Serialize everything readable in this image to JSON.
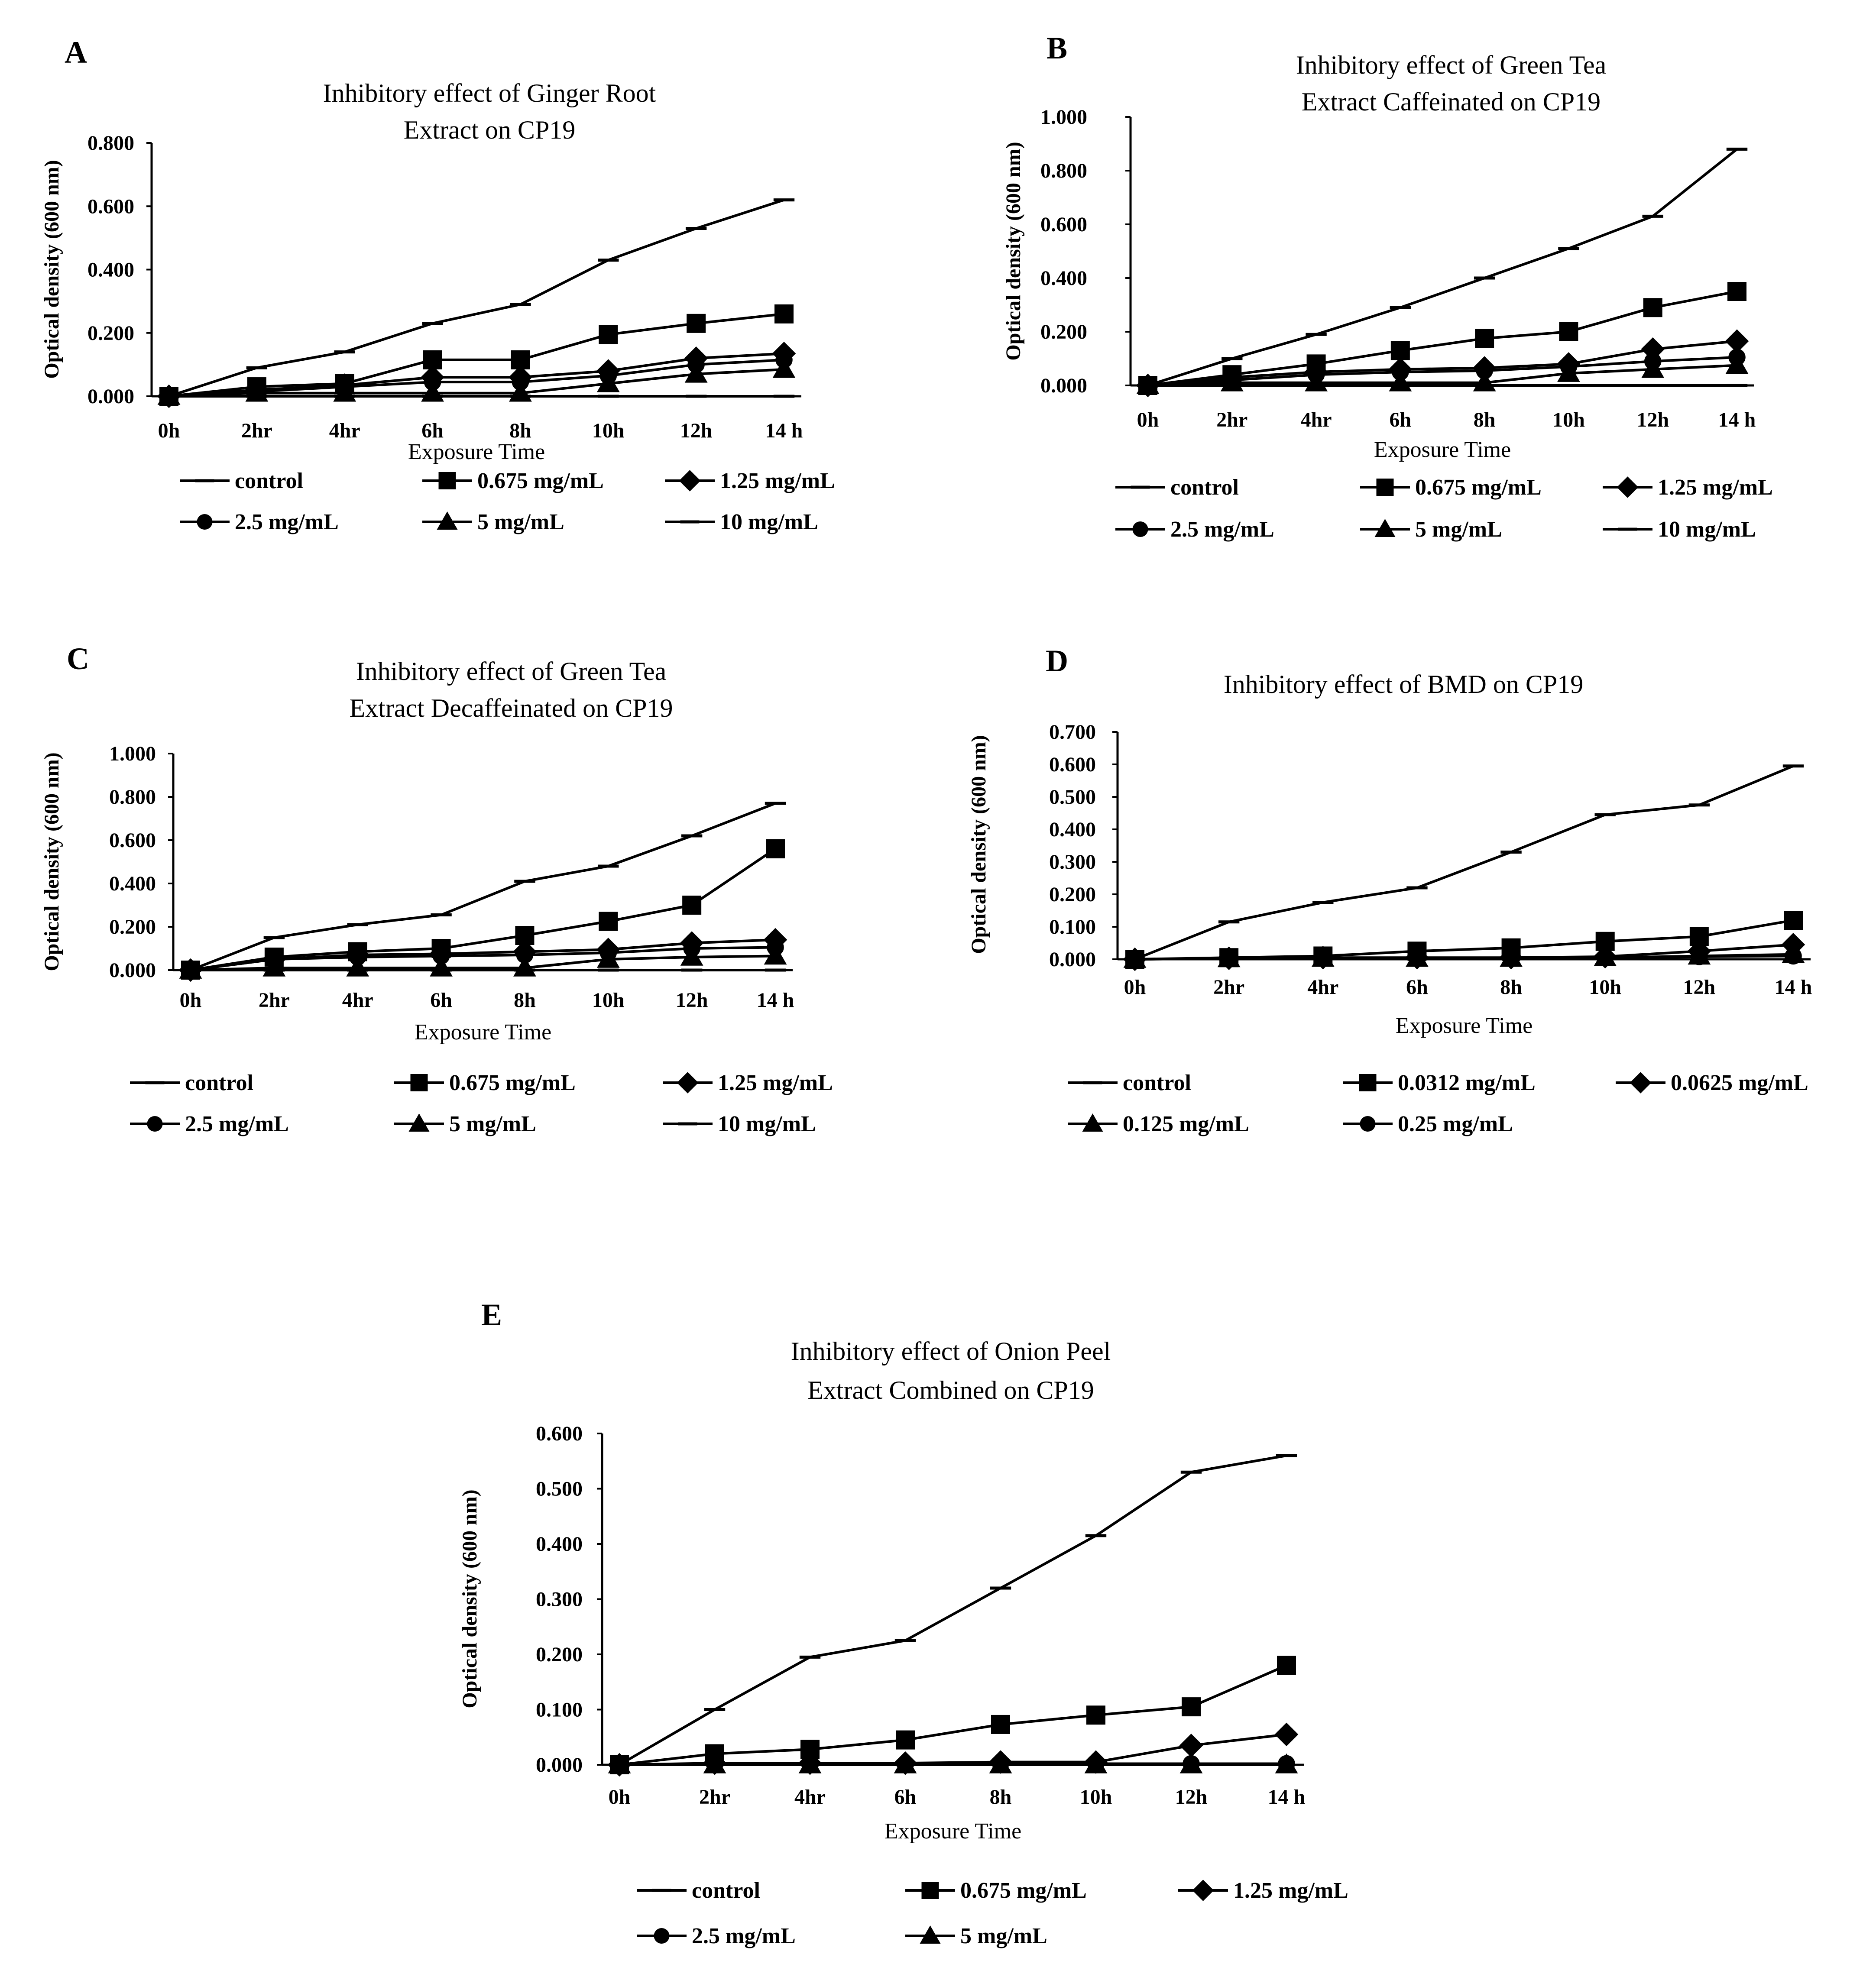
{
  "chart_data": [
    {
      "letter": "A",
      "type": "line",
      "title_lines": [
        "Inhibitory effect of Ginger Root",
        "Extract on CP19"
      ],
      "xlabel": "Exposure Time",
      "ylabel": "Optical density (600 nm)",
      "categories": [
        "0h",
        "2hr",
        "4hr",
        "6h",
        "8h",
        "10h",
        "12h",
        "14 h"
      ],
      "ylim": [
        0,
        0.8
      ],
      "yticks": [
        "0.000",
        "0.200",
        "0.400",
        "0.600",
        "0.800"
      ],
      "series": [
        {
          "name": "control",
          "marker": "dash",
          "values": [
            0.0,
            0.09,
            0.14,
            0.23,
            0.29,
            0.43,
            0.53,
            0.62
          ]
        },
        {
          "name": "0.675 mg/mL",
          "marker": "square",
          "values": [
            0.0,
            0.03,
            0.04,
            0.115,
            0.115,
            0.195,
            0.23,
            0.26
          ]
        },
        {
          "name": "1.25 mg/mL",
          "marker": "diamond",
          "values": [
            0.0,
            0.02,
            0.035,
            0.06,
            0.06,
            0.08,
            0.12,
            0.135
          ]
        },
        {
          "name": "2.5 mg/mL",
          "marker": "circle",
          "values": [
            0.0,
            0.015,
            0.03,
            0.045,
            0.045,
            0.065,
            0.1,
            0.115
          ]
        },
        {
          "name": "5 mg/mL",
          "marker": "triangle",
          "values": [
            0.0,
            0.01,
            0.01,
            0.01,
            0.01,
            0.04,
            0.07,
            0.085
          ]
        },
        {
          "name": "10 mg/mL",
          "marker": "dash",
          "values": [
            0.0,
            0.0,
            0.0,
            0.0,
            0.0,
            0.0,
            0.0,
            0.0
          ]
        }
      ]
    },
    {
      "letter": "B",
      "type": "line",
      "title_lines": [
        "Inhibitory effect of Green Tea",
        "Extract Caffeinated on CP19"
      ],
      "xlabel": "Exposure Time",
      "ylabel": "Optical density (600 nm)",
      "categories": [
        "0h",
        "2hr",
        "4hr",
        "6h",
        "8h",
        "10h",
        "12h",
        "14 h"
      ],
      "ylim": [
        0,
        1.0
      ],
      "yticks": [
        "0.000",
        "0.200",
        "0.400",
        "0.600",
        "0.800",
        "1.000"
      ],
      "series": [
        {
          "name": "control",
          "marker": "dash",
          "values": [
            0.0,
            0.1,
            0.19,
            0.29,
            0.4,
            0.51,
            0.63,
            0.88
          ]
        },
        {
          "name": "0.675 mg/mL",
          "marker": "square",
          "values": [
            0.0,
            0.04,
            0.08,
            0.13,
            0.175,
            0.2,
            0.29,
            0.35
          ]
        },
        {
          "name": "1.25 mg/mL",
          "marker": "diamond",
          "values": [
            0.0,
            0.03,
            0.05,
            0.06,
            0.065,
            0.08,
            0.135,
            0.165
          ]
        },
        {
          "name": "2.5 mg/mL",
          "marker": "circle",
          "values": [
            0.0,
            0.02,
            0.04,
            0.05,
            0.055,
            0.07,
            0.09,
            0.105
          ]
        },
        {
          "name": "5 mg/mL",
          "marker": "triangle",
          "values": [
            0.0,
            0.01,
            0.01,
            0.01,
            0.01,
            0.045,
            0.06,
            0.075
          ]
        },
        {
          "name": "10 mg/mL",
          "marker": "dash",
          "values": [
            0.0,
            0.0,
            0.0,
            0.0,
            0.0,
            0.0,
            0.0,
            0.0
          ]
        }
      ]
    },
    {
      "letter": "C",
      "type": "line",
      "title_lines": [
        "Inhibitory effect of Green Tea",
        "Extract Decaffeinated on CP19"
      ],
      "xlabel": "Exposure Time",
      "ylabel": "Optical density (600 nm)",
      "categories": [
        "0h",
        "2hr",
        "4hr",
        "6h",
        "8h",
        "10h",
        "12h",
        "14 h"
      ],
      "ylim": [
        0,
        1.0
      ],
      "yticks": [
        "0.000",
        "0.200",
        "0.400",
        "0.600",
        "0.800",
        "1.000"
      ],
      "series": [
        {
          "name": "control",
          "marker": "dash",
          "values": [
            0.0,
            0.15,
            0.21,
            0.255,
            0.41,
            0.48,
            0.62,
            0.77
          ]
        },
        {
          "name": "0.675 mg/mL",
          "marker": "square",
          "values": [
            0.0,
            0.06,
            0.085,
            0.1,
            0.16,
            0.225,
            0.3,
            0.56
          ]
        },
        {
          "name": "1.25 mg/mL",
          "marker": "diamond",
          "values": [
            0.0,
            0.05,
            0.07,
            0.075,
            0.085,
            0.095,
            0.125,
            0.14
          ]
        },
        {
          "name": "2.5 mg/mL",
          "marker": "circle",
          "values": [
            0.0,
            0.05,
            0.06,
            0.065,
            0.07,
            0.08,
            0.1,
            0.105
          ]
        },
        {
          "name": "5 mg/mL",
          "marker": "triangle",
          "values": [
            0.0,
            0.01,
            0.01,
            0.01,
            0.01,
            0.05,
            0.06,
            0.065
          ]
        },
        {
          "name": "10 mg/mL",
          "marker": "dash",
          "values": [
            0.0,
            0.0,
            0.0,
            0.0,
            0.0,
            0.0,
            0.0,
            0.0
          ]
        }
      ]
    },
    {
      "letter": "D",
      "type": "line",
      "title_lines": [
        "Inhibitory effect of BMD on CP19"
      ],
      "xlabel": "Exposure Time",
      "ylabel": "Optical density (600 nm)",
      "categories": [
        "0h",
        "2hr",
        "4hr",
        "6h",
        "8h",
        "10h",
        "12h",
        "14 h"
      ],
      "ylim": [
        0,
        0.7
      ],
      "yticks": [
        "0.000",
        "0.100",
        "0.200",
        "0.300",
        "0.400",
        "0.500",
        "0.600",
        "0.700"
      ],
      "series": [
        {
          "name": "control",
          "marker": "dash",
          "values": [
            0.0,
            0.115,
            0.175,
            0.22,
            0.33,
            0.445,
            0.475,
            0.595
          ]
        },
        {
          "name": "0.0312 mg/mL",
          "marker": "square",
          "values": [
            0.0,
            0.005,
            0.01,
            0.025,
            0.035,
            0.055,
            0.07,
            0.12
          ]
        },
        {
          "name": "0.0625 mg/mL",
          "marker": "diamond",
          "values": [
            0.0,
            0.003,
            0.005,
            0.005,
            0.005,
            0.008,
            0.025,
            0.045
          ]
        },
        {
          "name": "0.125 mg/mL",
          "marker": "triangle",
          "values": [
            0.0,
            0.002,
            0.003,
            0.003,
            0.003,
            0.005,
            0.01,
            0.015
          ]
        },
        {
          "name": "0.25 mg/mL",
          "marker": "circle",
          "values": [
            0.0,
            0.002,
            0.003,
            0.003,
            0.003,
            0.005,
            0.008,
            0.01
          ]
        }
      ]
    },
    {
      "letter": "E",
      "type": "line",
      "title_lines": [
        "Inhibitory effect of Onion Peel",
        "Extract Combined on CP19"
      ],
      "xlabel": "Exposure Time",
      "ylabel": "Optical density (600 nm)",
      "categories": [
        "0h",
        "2hr",
        "4hr",
        "6h",
        "8h",
        "10h",
        "12h",
        "14 h"
      ],
      "ylim": [
        0,
        0.6
      ],
      "yticks": [
        "0.000",
        "0.100",
        "0.200",
        "0.300",
        "0.400",
        "0.500",
        "0.600"
      ],
      "series": [
        {
          "name": "control",
          "marker": "dash",
          "values": [
            0.0,
            0.1,
            0.195,
            0.225,
            0.32,
            0.415,
            0.53,
            0.56
          ]
        },
        {
          "name": "0.675 mg/mL",
          "marker": "square",
          "values": [
            0.0,
            0.02,
            0.028,
            0.045,
            0.073,
            0.09,
            0.105,
            0.18
          ]
        },
        {
          "name": "1.25 mg/mL",
          "marker": "diamond",
          "values": [
            0.0,
            0.003,
            0.003,
            0.003,
            0.005,
            0.005,
            0.035,
            0.055
          ]
        },
        {
          "name": "2.5 mg/mL",
          "marker": "circle",
          "values": [
            0.0,
            0.002,
            0.002,
            0.002,
            0.002,
            0.002,
            0.002,
            0.002
          ]
        },
        {
          "name": "5 mg/mL",
          "marker": "triangle",
          "values": [
            0.0,
            0.0,
            0.0,
            0.0,
            0.0,
            0.0,
            0.0,
            0.0
          ]
        }
      ]
    }
  ]
}
